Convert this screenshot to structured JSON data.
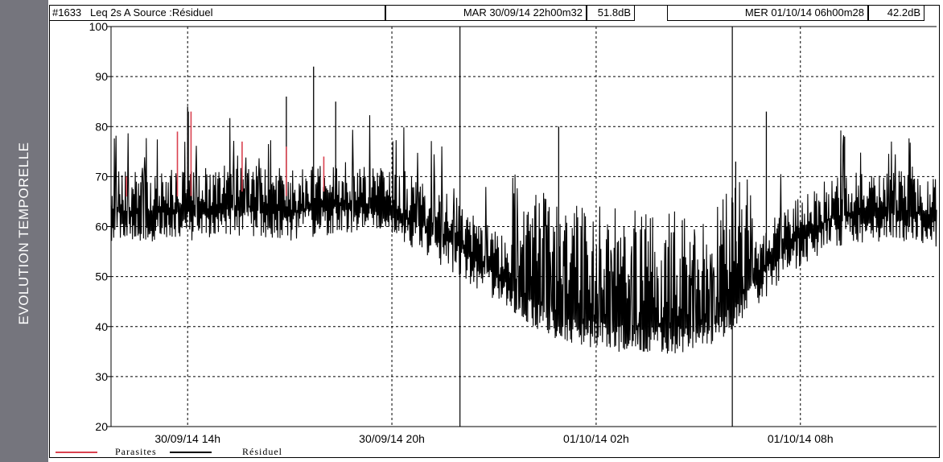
{
  "sidebar": {
    "label": "EVOLUTION TEMPORELLE"
  },
  "header": {
    "id": "#1633",
    "measure": "Leq 2s  A  Source :Résiduel",
    "start_time": "MAR 30/09/14 22h00m32",
    "start_level": "51.8dB",
    "end_time": "MER 01/10/14 06h00m28",
    "end_level": "42.2dB"
  },
  "colors": {
    "residuel": "#000000",
    "parasites": "#d9414f",
    "sidebar": "#75757d"
  },
  "chart_data": {
    "type": "line",
    "title": "",
    "xlabel": "",
    "ylabel": "",
    "ylim": [
      20,
      100
    ],
    "yticks": [
      20,
      30,
      40,
      50,
      60,
      70,
      80,
      90,
      100
    ],
    "ytick_labels": [
      "20",
      "30",
      "40",
      "50",
      "60",
      "70",
      "80",
      "90",
      "100"
    ],
    "x_ticks": [
      {
        "hour": 14,
        "label": "30/09/14 14h"
      },
      {
        "hour": 20,
        "label": "30/09/14 20h"
      },
      {
        "hour": 26,
        "label": "01/10/14 02h"
      },
      {
        "hour": 32,
        "label": "01/10/14 08h"
      }
    ],
    "x_unit": "hours since 30/09/14 00h",
    "xlim": [
      11.75,
      36.0
    ],
    "highlight_interval_hours": [
      22.0,
      30.0
    ],
    "grid": true,
    "legend_position": "bottom",
    "series": [
      {
        "name": "Résiduel",
        "color": "#000000",
        "baseline": [
          [
            11.75,
            63
          ],
          [
            13,
            63
          ],
          [
            14,
            63
          ],
          [
            15,
            64
          ],
          [
            16,
            64
          ],
          [
            17,
            63
          ],
          [
            18,
            64
          ],
          [
            19,
            65
          ],
          [
            20,
            63
          ],
          [
            21,
            60
          ],
          [
            22,
            56
          ],
          [
            23,
            51
          ],
          [
            24,
            46
          ],
          [
            25,
            42
          ],
          [
            26,
            41
          ],
          [
            27,
            40
          ],
          [
            28,
            40
          ],
          [
            29,
            40
          ],
          [
            30,
            44
          ],
          [
            31,
            52
          ],
          [
            32,
            58
          ],
          [
            33,
            62
          ],
          [
            34,
            63
          ],
          [
            35,
            63
          ],
          [
            36,
            62
          ]
        ],
        "peaks": [
          [
            14,
            84
          ],
          [
            14.02,
            83
          ],
          [
            16.9,
            86
          ],
          [
            17.7,
            92
          ],
          [
            18.35,
            85
          ],
          [
            24.9,
            80
          ],
          [
            31.0,
            83
          ],
          [
            33.3,
            78
          ],
          [
            30.1,
            73
          ]
        ]
      },
      {
        "name": "Parasites",
        "color": "#d9414f",
        "segments": [
          [
            12.2,
            70
          ],
          [
            13.7,
            79
          ],
          [
            14.1,
            83
          ],
          [
            15.6,
            77
          ],
          [
            16.9,
            76
          ],
          [
            18.0,
            74
          ]
        ]
      }
    ]
  }
}
